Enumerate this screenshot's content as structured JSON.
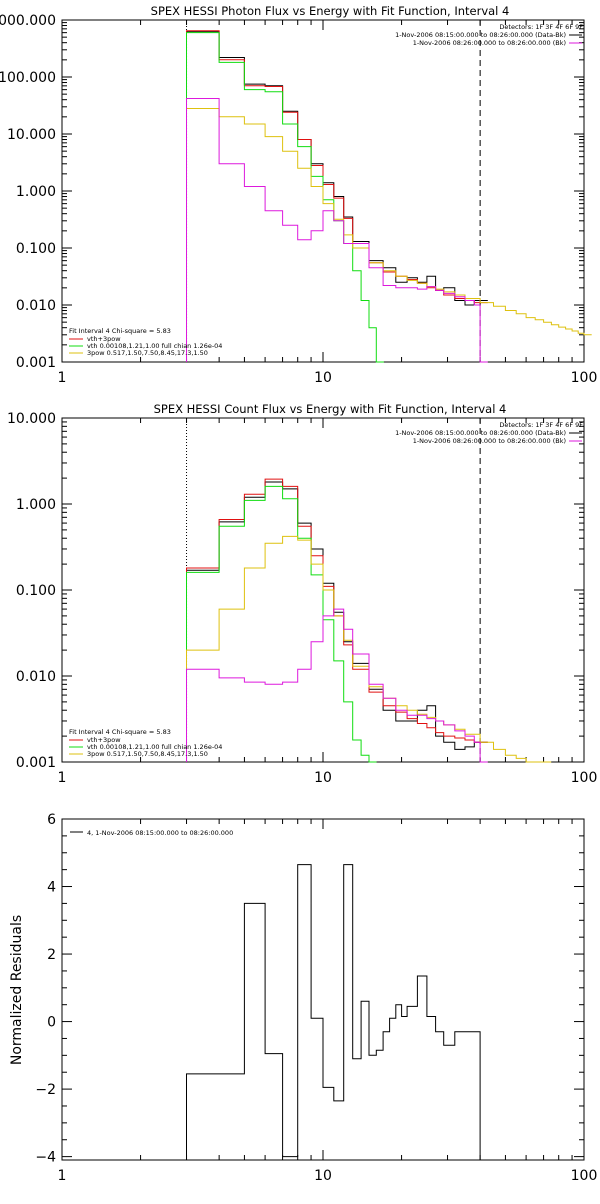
{
  "colors": {
    "black": "#000000",
    "red": "#e01010",
    "green": "#10dd10",
    "yellow": "#dec10f",
    "magenta": "#dd19dd",
    "background": "#ffffff"
  },
  "chart_data": [
    {
      "type": "line",
      "title": "SPEX HESSI Photon Flux vs Energy with Fit Function, Interval 4",
      "xlabel": "",
      "ylabel": "",
      "xscale": "log",
      "yscale": "log",
      "xlim": [
        1,
        100
      ],
      "ylim": [
        0.001,
        1000
      ],
      "xticks": [
        1,
        10,
        100
      ],
      "xtick_labels": [
        "1",
        "10",
        "100"
      ],
      "yticks": [
        0.001,
        0.01,
        0.1,
        1,
        10,
        100,
        1000
      ],
      "ytick_labels": [
        "0.001",
        "0.010",
        "0.100",
        "1.000",
        "10.000",
        "100.000",
        "1000.000"
      ],
      "vlines": [
        {
          "x": 3,
          "style": "dotted"
        },
        {
          "x": 40,
          "style": "dashed"
        }
      ],
      "info_lines": [
        "Detectors: 1F 3F 4F 6F 9F",
        "1-Nov-2006 08:15:00.000 to 08:26:00.000 (Data-Bk)",
        "1-Nov-2006 08:26:00.000 to 08:26:00.000 (Bk)"
      ],
      "info_line_colors": [
        "black",
        "black",
        "magenta"
      ],
      "legend_lines": [
        "Fit Interval 4   Chi-square = 5.83",
        "vth+3pow",
        "vth 0.00108,1.21,1.00  full chian 1.26e-04",
        "3pow 0.517,1.50,7.50,8.45,17.3,1.50"
      ],
      "legend_colors": [
        "black",
        "red",
        "green",
        "yellow"
      ],
      "legend_position": "bottom-left",
      "series": [
        {
          "color": "black",
          "x": [
            3,
            4,
            5,
            6,
            7,
            8,
            9,
            10,
            11,
            12,
            13,
            15,
            17,
            19,
            21,
            23,
            25,
            27,
            29,
            32,
            35,
            38,
            40
          ],
          "y": [
            620,
            220,
            75,
            70,
            25,
            8,
            3,
            1.4,
            0.8,
            0.35,
            0.13,
            0.06,
            0.045,
            0.025,
            0.03,
            0.025,
            0.032,
            0.018,
            0.02,
            0.012,
            0.01,
            0.012,
            0.012
          ]
        },
        {
          "color": "red",
          "x": [
            3,
            4,
            5,
            6,
            7,
            8,
            9,
            10,
            11,
            12,
            13,
            15,
            17,
            19,
            21,
            23,
            25,
            27,
            29,
            32,
            35,
            38,
            40
          ],
          "y": [
            650,
            200,
            70,
            68,
            24,
            8,
            2.8,
            1.3,
            0.75,
            0.33,
            0.12,
            0.055,
            0.038,
            0.032,
            0.028,
            0.024,
            0.02,
            0.018,
            0.015,
            0.013,
            0.012,
            0.011,
            0.011
          ]
        },
        {
          "color": "green",
          "x": [
            3,
            4,
            5,
            6,
            7,
            8,
            9,
            10,
            11,
            12,
            13,
            14,
            15,
            16
          ],
          "y": [
            600,
            180,
            60,
            55,
            15,
            6,
            1.8,
            0.7,
            0.3,
            0.12,
            0.04,
            0.012,
            0.004,
            0.001
          ]
        },
        {
          "color": "yellow",
          "x": [
            3,
            4,
            5,
            6,
            7,
            8,
            9,
            10,
            11,
            12,
            13,
            15,
            17,
            19,
            21,
            23,
            25,
            27,
            29,
            32,
            35,
            40,
            45,
            50,
            55,
            60,
            65,
            70,
            75,
            80,
            85,
            90,
            95,
            100
          ],
          "y": [
            28,
            20,
            15,
            9,
            5,
            2.5,
            1.2,
            0.6,
            0.32,
            0.17,
            0.1,
            0.055,
            0.04,
            0.032,
            0.027,
            0.024,
            0.021,
            0.019,
            0.017,
            0.015,
            0.013,
            0.011,
            0.0095,
            0.008,
            0.007,
            0.006,
            0.0055,
            0.005,
            0.0045,
            0.0041,
            0.0038,
            0.0035,
            0.0032,
            0.003
          ]
        },
        {
          "color": "magenta",
          "x": [
            3,
            4,
            5,
            6,
            7,
            8,
            9,
            10,
            11,
            12,
            13,
            15,
            17,
            19,
            21,
            23,
            25,
            27,
            29,
            32,
            35,
            38,
            40
          ],
          "y": [
            42,
            3,
            1.2,
            0.45,
            0.25,
            0.14,
            0.2,
            0.45,
            0.3,
            0.12,
            0.12,
            0.045,
            0.022,
            0.02,
            0.02,
            0.019,
            0.021,
            0.018,
            0.016,
            0.014,
            0.012,
            0.01,
            0.001
          ]
        }
      ]
    },
    {
      "type": "line",
      "title": "SPEX HESSI Count Flux vs Energy with Fit Function, Interval 4",
      "xlabel": "",
      "ylabel": "",
      "xscale": "log",
      "yscale": "log",
      "xlim": [
        1,
        100
      ],
      "ylim": [
        0.001,
        10
      ],
      "xticks": [
        1,
        10,
        100
      ],
      "xtick_labels": [
        "1",
        "10",
        "100"
      ],
      "yticks": [
        0.001,
        0.01,
        0.1,
        1,
        10
      ],
      "ytick_labels": [
        "0.001",
        "0.010",
        "0.100",
        "1.000",
        "10.000"
      ],
      "vlines": [
        {
          "x": 3,
          "style": "dotted"
        },
        {
          "x": 40,
          "style": "dashed"
        }
      ],
      "info_lines": [
        "Detectors: 1F 3F 4F 6F 9F",
        "1-Nov-2006 08:15:00.000 to 08:26:00.000 (Data-Bk)",
        "1-Nov-2006 08:26:00.000 to 08:26:00.000 (Bk)"
      ],
      "info_line_colors": [
        "black",
        "black",
        "magenta"
      ],
      "legend_lines": [
        "Fit Interval 4   Chi-square = 5.83",
        "vth+3pow",
        "vth 0.00108,1.21,1.00  full chian 1.26e-04",
        "3pow 0.517,1.50,7.50,8.45,17.3,1.50"
      ],
      "legend_colors": [
        "black",
        "red",
        "green",
        "yellow"
      ],
      "legend_position": "bottom-left",
      "series": [
        {
          "color": "black",
          "x": [
            3,
            4,
            5,
            6,
            7,
            8,
            9,
            10,
            11,
            12,
            13,
            15,
            17,
            19,
            21,
            23,
            25,
            27,
            29,
            32,
            35,
            38,
            40
          ],
          "y": [
            0.17,
            0.62,
            1.2,
            1.8,
            1.5,
            0.6,
            0.3,
            0.12,
            0.055,
            0.025,
            0.014,
            0.007,
            0.004,
            0.003,
            0.003,
            0.004,
            0.0045,
            0.002,
            0.0017,
            0.0014,
            0.0015,
            0.0017,
            0.0017
          ]
        },
        {
          "color": "red",
          "x": [
            3,
            4,
            5,
            6,
            7,
            8,
            9,
            10,
            11,
            12,
            13,
            15,
            17,
            19,
            21,
            23,
            25,
            27,
            29,
            32,
            35,
            38,
            40
          ],
          "y": [
            0.18,
            0.66,
            1.3,
            1.95,
            1.6,
            0.55,
            0.25,
            0.11,
            0.05,
            0.023,
            0.012,
            0.0065,
            0.0045,
            0.0038,
            0.0032,
            0.0028,
            0.0025,
            0.0022,
            0.002,
            0.0019,
            0.0018,
            0.0017,
            0.0017
          ]
        },
        {
          "color": "green",
          "x": [
            3,
            4,
            5,
            6,
            7,
            8,
            9,
            10,
            11,
            12,
            13,
            14,
            15
          ],
          "y": [
            0.16,
            0.55,
            1.1,
            1.6,
            1.15,
            0.4,
            0.15,
            0.045,
            0.015,
            0.005,
            0.0018,
            0.0012,
            0.001
          ]
        },
        {
          "color": "yellow",
          "x": [
            3,
            4,
            5,
            6,
            7,
            8,
            9,
            10,
            11,
            12,
            13,
            15,
            17,
            19,
            21,
            23,
            25,
            27,
            29,
            32,
            35,
            40,
            45,
            50,
            55,
            60,
            70
          ],
          "y": [
            0.02,
            0.06,
            0.18,
            0.35,
            0.42,
            0.38,
            0.2,
            0.1,
            0.05,
            0.026,
            0.013,
            0.0075,
            0.0055,
            0.0045,
            0.004,
            0.0036,
            0.0033,
            0.003,
            0.0027,
            0.0024,
            0.0021,
            0.0017,
            0.0014,
            0.0012,
            0.0011,
            0.001,
            0.001
          ]
        },
        {
          "color": "magenta",
          "x": [
            3,
            4,
            5,
            6,
            7,
            8,
            9,
            10,
            11,
            12,
            13,
            15,
            17,
            19,
            21,
            23,
            25,
            27,
            29,
            32,
            35,
            38,
            40
          ],
          "y": [
            0.012,
            0.0095,
            0.0085,
            0.008,
            0.0085,
            0.012,
            0.025,
            0.05,
            0.06,
            0.035,
            0.018,
            0.008,
            0.0055,
            0.004,
            0.0035,
            0.0035,
            0.0032,
            0.003,
            0.0027,
            0.0023,
            0.002,
            0.0017,
            0.001
          ]
        }
      ]
    },
    {
      "type": "line",
      "title": "",
      "xlabel": "",
      "ylabel": "Normalized Residuals",
      "xscale": "log",
      "yscale": "linear",
      "xlim": [
        1,
        100
      ],
      "ylim": [
        -4.1,
        6
      ],
      "xticks": [
        1,
        10,
        100
      ],
      "xtick_labels": [
        "1",
        "10",
        "100"
      ],
      "yticks": [
        -4,
        -2,
        0,
        2,
        4,
        6
      ],
      "ytick_labels": [
        "−4",
        "−2",
        "0",
        "2",
        "4",
        "6"
      ],
      "legend_lines": [
        "4, 1-Nov-2006 08:15:00.000 to 08:26:00.000"
      ],
      "legend_position": "top-left",
      "series": [
        {
          "color": "black",
          "x": [
            3,
            4,
            5,
            6,
            7,
            8,
            9,
            10,
            11,
            12,
            13,
            14,
            15,
            16,
            17,
            18,
            19,
            20,
            21,
            23,
            25,
            27,
            29,
            32,
            35,
            38,
            40
          ],
          "y": [
            -1.55,
            -1.55,
            3.5,
            -0.95,
            -4.0,
            4.65,
            0.1,
            -1.95,
            -2.35,
            4.65,
            -1.1,
            0.6,
            -1.0,
            -0.85,
            -0.3,
            0.1,
            0.5,
            0.15,
            0.45,
            1.35,
            0.15,
            -0.3,
            -0.7,
            -0.3,
            -0.3,
            -0.3,
            -4.1
          ]
        }
      ]
    }
  ],
  "plots": [
    {
      "title": "SPEX HESSI Photon Flux vs Energy with Fit Function, Interval 4",
      "info": [
        "Detectors: 1F 3F 4F 6F 9F",
        "1-Nov-2006 08:15:00.000 to 08:26:00.000 (Data-Bk)",
        "1-Nov-2006 08:26:00.000 to 08:26:00.000 (Bk)"
      ],
      "legend": [
        "Fit Interval 4   Chi-square = 5.83",
        "vth+3pow",
        "vth 0.00108,1.21,1.00  full chian 1.26e-04",
        "3pow 0.517,1.50,7.50,8.45,17.3,1.50"
      ]
    },
    {
      "title": "SPEX HESSI Count Flux vs Energy with Fit Function, Interval 4",
      "info": [
        "Detectors: 1F 3F 4F 6F 9F",
        "1-Nov-2006 08:15:00.000 to 08:26:00.000 (Data-Bk)",
        "1-Nov-2006 08:26:00.000 to 08:26:00.000 (Bk)"
      ],
      "legend": [
        "Fit Interval 4   Chi-square = 5.83",
        "vth+3pow",
        "vth 0.00108,1.21,1.00  full chian 1.26e-04",
        "3pow 0.517,1.50,7.50,8.45,17.3,1.50"
      ]
    },
    {
      "ylabel": "Normalized Residuals",
      "legend": "4, 1-Nov-2006 08:15:00.000 to 08:26:00.000"
    }
  ]
}
